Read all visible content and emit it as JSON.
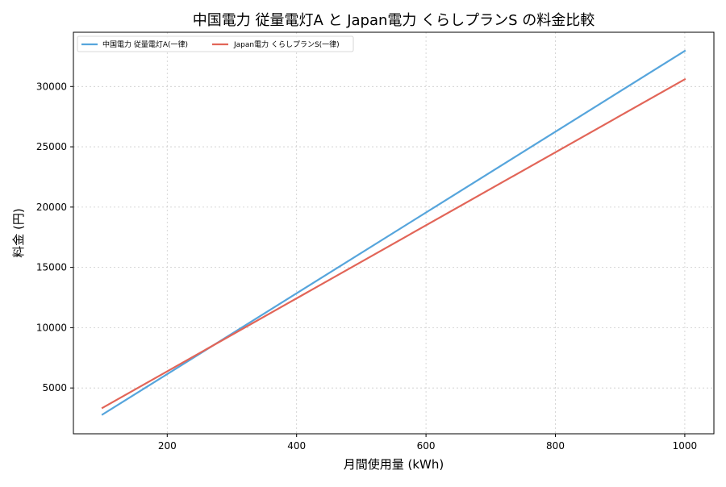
{
  "chart_data": {
    "type": "line",
    "title": "中国電力 従量電灯A と Japan電力 くらしプランS の料金比較",
    "xlabel": "月間使用量 (kWh)",
    "ylabel": "料金 (円)",
    "xlim": [
      55,
      1045
    ],
    "ylim": [
      1200,
      34500
    ],
    "xticks": [
      200,
      400,
      600,
      800,
      1000
    ],
    "yticks": [
      5000,
      10000,
      15000,
      20000,
      25000,
      30000
    ],
    "grid": true,
    "legend_position": "top-left",
    "series": [
      {
        "name": "中国電力 従量電灯A(一律)",
        "color": "#56a5dc",
        "x": [
          100,
          1000
        ],
        "y": [
          2800,
          32950
        ]
      },
      {
        "name": "Japan電力 くらしプランS(一律)",
        "color": "#e26558",
        "x": [
          100,
          1000
        ],
        "y": [
          3350,
          30600
        ]
      }
    ]
  }
}
